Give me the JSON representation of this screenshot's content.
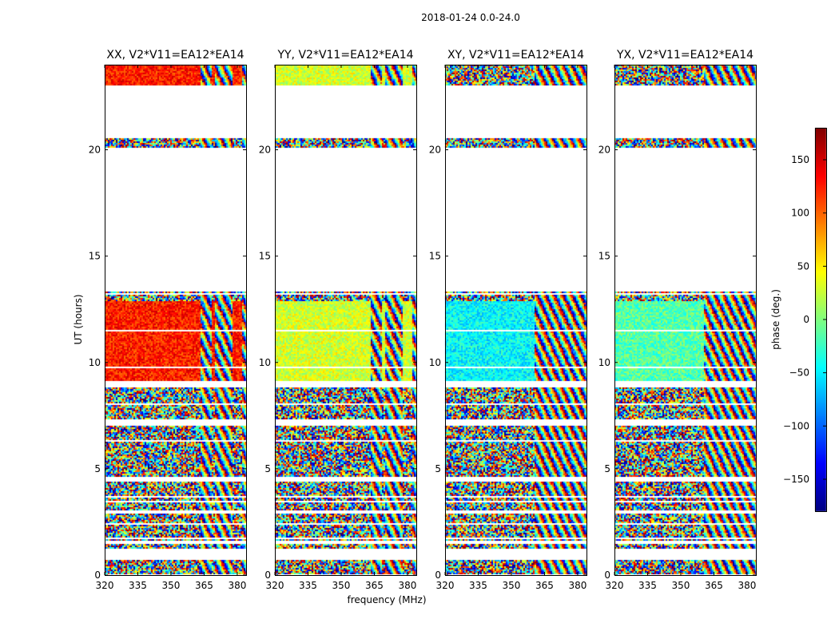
{
  "chart_data": {
    "type": "heatmap",
    "title": "2018-01-24 0.0-24.0",
    "xlabel": "frequency (MHz)",
    "ylabel": "UT (hours)",
    "xlim": [
      320,
      384
    ],
    "ylim": [
      0,
      24
    ],
    "xticks": [
      320,
      335,
      350,
      365,
      380
    ],
    "xtick_labels": [
      "320",
      "335",
      "350",
      "365",
      "380"
    ],
    "yticks": [
      0,
      5,
      10,
      15,
      20
    ],
    "ytick_labels": [
      "0",
      "5",
      "10",
      "15",
      "20"
    ],
    "colorbar": {
      "label": "phase (deg.)",
      "range": [
        -180,
        180
      ],
      "ticks": [
        -150,
        -100,
        -50,
        0,
        50,
        100,
        150
      ],
      "tick_labels": [
        "−150",
        "−100",
        "−50",
        "0",
        "50",
        "100",
        "150"
      ],
      "colormap": [
        "#00007f",
        "#0000ff",
        "#00bfff",
        "#39ff96",
        "#dfff19",
        "#ffa500",
        "#ff2a00",
        "#7f0000"
      ]
    },
    "time_blocks_hours": [
      [
        0.0,
        0.75
      ],
      [
        1.25,
        1.45
      ],
      [
        1.65,
        2.35
      ],
      [
        2.45,
        2.9
      ],
      [
        3.05,
        3.65
      ],
      [
        3.75,
        4.45
      ],
      [
        4.55,
        7.05
      ],
      [
        7.35,
        8.85
      ],
      [
        9.15,
        13.35
      ],
      [
        20.15,
        20.55
      ],
      [
        23.05,
        24.0
      ]
    ],
    "panels": [
      {
        "title": "XX, V2*V11=EA12*EA14",
        "coherent_phase_deg": 125,
        "coherent_blocks": [
          [
            9.15,
            12.9
          ],
          [
            23.05,
            24.0
          ]
        ],
        "fringe_ranges_mhz": [
          [
            363,
            368
          ],
          [
            370,
            378
          ],
          [
            382,
            384
          ]
        ]
      },
      {
        "title": "YY, V2*V11=EA12*EA14",
        "coherent_phase_deg": 30,
        "coherent_blocks": [
          [
            9.15,
            12.9
          ],
          [
            23.05,
            24.0
          ]
        ],
        "fringe_ranges_mhz": [
          [
            363,
            368
          ],
          [
            370,
            378
          ],
          [
            382,
            384
          ]
        ]
      },
      {
        "title": "XY, V2*V11=EA12*EA14",
        "coherent_phase_deg": -45,
        "coherent_blocks": [
          [
            9.15,
            12.9
          ]
        ],
        "fringe_ranges_mhz": [
          [
            360,
            384
          ]
        ]
      },
      {
        "title": "YX, V2*V11=EA12*EA14",
        "coherent_phase_deg": -15,
        "coherent_blocks": [
          [
            9.15,
            12.9
          ]
        ],
        "fringe_ranges_mhz": [
          [
            360,
            384
          ]
        ]
      }
    ]
  }
}
